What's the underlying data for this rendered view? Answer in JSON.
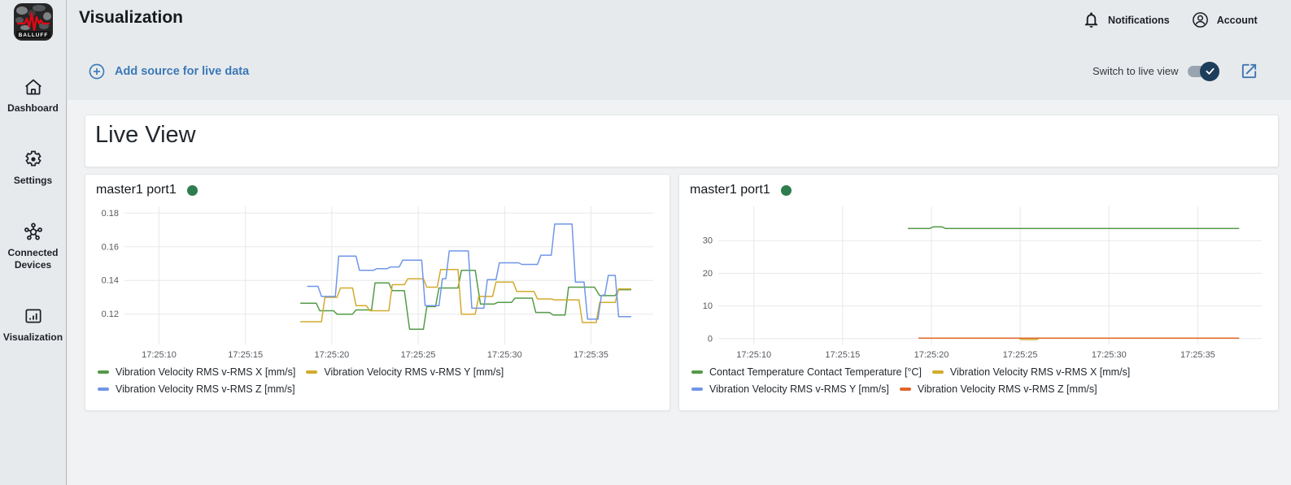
{
  "app": {
    "brand": "BALLUFF",
    "page_title": "Visualization"
  },
  "header": {
    "notifications": "Notifications",
    "account": "Account"
  },
  "toolbar": {
    "add_source": "Add source for live data",
    "switch_live": "Switch to live view",
    "switch_on": true
  },
  "sidebar": {
    "items": [
      {
        "id": "dashboard",
        "label": "Dashboard"
      },
      {
        "id": "settings",
        "label": "Settings"
      },
      {
        "id": "connected-devices",
        "label": "Connected Devices"
      },
      {
        "id": "visualization",
        "label": "Visualization"
      }
    ]
  },
  "content": {
    "view_title": "Live View"
  },
  "colors": {
    "accent_blue": "#3a79b8",
    "toggle_knob_navy": "#1d3e5a",
    "status_green": "#2e7d4e",
    "grid": "#e7e8ea",
    "axis_text": "#56595e"
  },
  "chart_data": [
    {
      "type": "line",
      "title": "master1 port1",
      "status_color": "#2e7d4e",
      "x_unit": "time (hh:mm:ss), values are seconds after 17:25:00",
      "xlim": [
        8.0,
        38.6
      ],
      "x_ticks": [
        {
          "v": 10,
          "label": "17:25:10"
        },
        {
          "v": 15,
          "label": "17:25:15"
        },
        {
          "v": 20,
          "label": "17:25:20"
        },
        {
          "v": 25,
          "label": "17:25:25"
        },
        {
          "v": 30,
          "label": "17:25:30"
        },
        {
          "v": 35,
          "label": "17:25:35"
        }
      ],
      "ylim": [
        0.102,
        0.184
      ],
      "y_ticks": [
        {
          "v": 0.12,
          "label": "0.12"
        },
        {
          "v": 0.14,
          "label": "0.14"
        },
        {
          "v": 0.16,
          "label": "0.16"
        },
        {
          "v": 0.18,
          "label": "0.18"
        }
      ],
      "series": [
        {
          "name": "Vibration Velocity RMS v-RMS X [mm/s]",
          "color": "#539b47",
          "points": [
            [
              18.2,
              0.1265
            ],
            [
              19.1,
              0.1265
            ],
            [
              19.3,
              0.122
            ],
            [
              20.1,
              0.122
            ],
            [
              20.3,
              0.12
            ],
            [
              21.2,
              0.12
            ],
            [
              21.4,
              0.1225
            ],
            [
              22.3,
              0.1225
            ],
            [
              22.5,
              0.1385
            ],
            [
              23.3,
              0.1385
            ],
            [
              23.5,
              0.134
            ],
            [
              24.2,
              0.134
            ],
            [
              24.5,
              0.111
            ],
            [
              25.3,
              0.111
            ],
            [
              25.5,
              0.1245
            ],
            [
              26.0,
              0.1245
            ],
            [
              26.2,
              0.1355
            ],
            [
              27.3,
              0.1355
            ],
            [
              27.5,
              0.146
            ],
            [
              28.3,
              0.146
            ],
            [
              28.6,
              0.126
            ],
            [
              29.4,
              0.126
            ],
            [
              29.6,
              0.127
            ],
            [
              30.4,
              0.127
            ],
            [
              30.6,
              0.1295
            ],
            [
              31.6,
              0.1295
            ],
            [
              31.8,
              0.121
            ],
            [
              32.6,
              0.121
            ],
            [
              32.8,
              0.1195
            ],
            [
              33.5,
              0.1195
            ],
            [
              33.7,
              0.136
            ],
            [
              35.2,
              0.136
            ],
            [
              35.5,
              0.131
            ],
            [
              36.4,
              0.131
            ],
            [
              36.6,
              0.1345
            ],
            [
              37.3,
              0.1345
            ]
          ]
        },
        {
          "name": "Vibration Velocity RMS v-RMS Y [mm/s]",
          "color": "#d2ab2c",
          "points": [
            [
              18.2,
              0.1155
            ],
            [
              19.4,
              0.1155
            ],
            [
              19.6,
              0.13
            ],
            [
              20.3,
              0.13
            ],
            [
              20.5,
              0.1355
            ],
            [
              21.2,
              0.1355
            ],
            [
              21.4,
              0.125
            ],
            [
              22.0,
              0.125
            ],
            [
              22.2,
              0.122
            ],
            [
              23.3,
              0.122
            ],
            [
              23.5,
              0.1375
            ],
            [
              24.2,
              0.1375
            ],
            [
              24.4,
              0.141
            ],
            [
              25.3,
              0.141
            ],
            [
              25.5,
              0.136
            ],
            [
              26.1,
              0.136
            ],
            [
              26.3,
              0.1465
            ],
            [
              27.3,
              0.1465
            ],
            [
              27.5,
              0.12
            ],
            [
              28.3,
              0.12
            ],
            [
              28.5,
              0.1305
            ],
            [
              29.3,
              0.1305
            ],
            [
              29.5,
              0.139
            ],
            [
              30.5,
              0.139
            ],
            [
              30.7,
              0.1335
            ],
            [
              31.7,
              0.1335
            ],
            [
              31.9,
              0.129
            ],
            [
              32.7,
              0.129
            ],
            [
              32.9,
              0.1285
            ],
            [
              34.3,
              0.1285
            ],
            [
              34.5,
              0.115
            ],
            [
              35.3,
              0.115
            ],
            [
              35.5,
              0.127
            ],
            [
              36.4,
              0.127
            ],
            [
              36.6,
              0.135
            ],
            [
              37.3,
              0.135
            ]
          ]
        },
        {
          "name": "Vibration Velocity RMS v-RMS Z [mm/s]",
          "color": "#7096e8",
          "points": [
            [
              18.6,
              0.1365
            ],
            [
              19.2,
              0.1365
            ],
            [
              19.4,
              0.1305
            ],
            [
              20.2,
              0.1305
            ],
            [
              20.4,
              0.1545
            ],
            [
              21.4,
              0.1545
            ],
            [
              21.6,
              0.146
            ],
            [
              22.4,
              0.146
            ],
            [
              22.6,
              0.147
            ],
            [
              23.2,
              0.147
            ],
            [
              23.4,
              0.148
            ],
            [
              23.9,
              0.148
            ],
            [
              24.1,
              0.152
            ],
            [
              25.2,
              0.152
            ],
            [
              25.4,
              0.125
            ],
            [
              26.2,
              0.125
            ],
            [
              26.4,
              0.141
            ],
            [
              26.6,
              0.141
            ],
            [
              26.8,
              0.1575
            ],
            [
              27.9,
              0.1575
            ],
            [
              28.1,
              0.1235
            ],
            [
              28.8,
              0.1235
            ],
            [
              29.0,
              0.1405
            ],
            [
              29.5,
              0.1405
            ],
            [
              29.7,
              0.1505
            ],
            [
              30.8,
              0.1505
            ],
            [
              31.0,
              0.1495
            ],
            [
              31.9,
              0.1495
            ],
            [
              32.1,
              0.155
            ],
            [
              32.7,
              0.155
            ],
            [
              32.9,
              0.1735
            ],
            [
              33.9,
              0.1735
            ],
            [
              34.1,
              0.139
            ],
            [
              34.6,
              0.139
            ],
            [
              34.8,
              0.117
            ],
            [
              35.4,
              0.117
            ],
            [
              35.6,
              0.131
            ],
            [
              35.8,
              0.1315
            ],
            [
              36.0,
              0.143
            ],
            [
              36.4,
              0.143
            ],
            [
              36.6,
              0.1185
            ],
            [
              37.3,
              0.1185
            ]
          ]
        }
      ]
    },
    {
      "type": "line",
      "title": "master1 port1",
      "status_color": "#2e7d4e",
      "x_unit": "time (hh:mm:ss), values are seconds after 17:25:00",
      "xlim": [
        8.0,
        38.6
      ],
      "x_ticks": [
        {
          "v": 10,
          "label": "17:25:10"
        },
        {
          "v": 15,
          "label": "17:25:15"
        },
        {
          "v": 20,
          "label": "17:25:20"
        },
        {
          "v": 25,
          "label": "17:25:25"
        },
        {
          "v": 30,
          "label": "17:25:30"
        },
        {
          "v": 35,
          "label": "17:25:35"
        }
      ],
      "ylim": [
        -1.8,
        40.5
      ],
      "y_ticks": [
        {
          "v": 0,
          "label": "0"
        },
        {
          "v": 10,
          "label": "10"
        },
        {
          "v": 20,
          "label": "20"
        },
        {
          "v": 30,
          "label": "30"
        }
      ],
      "series": [
        {
          "name": "Contact Temperature Contact Temperature [°C]",
          "color": "#539b47",
          "points": [
            [
              18.7,
              33.7
            ],
            [
              19.9,
              33.7
            ],
            [
              20.1,
              34.2
            ],
            [
              20.6,
              34.2
            ],
            [
              20.8,
              33.7
            ],
            [
              37.3,
              33.7
            ]
          ]
        },
        {
          "name": "Vibration Velocity RMS v-RMS X [mm/s]",
          "color": "#d2ab2c",
          "points": [
            [
              19.3,
              0.13
            ],
            [
              24.9,
              0.13
            ],
            [
              25.1,
              -0.3
            ],
            [
              25.9,
              -0.3
            ],
            [
              26.1,
              0.13
            ],
            [
              37.3,
              0.13
            ]
          ]
        },
        {
          "name": "Vibration Velocity RMS v-RMS Y [mm/s]",
          "color": "#7096e8",
          "points": [
            [
              19.3,
              0.12
            ],
            [
              37.3,
              0.12
            ]
          ]
        },
        {
          "name": "Vibration Velocity RMS v-RMS Z [mm/s]",
          "color": "#e0662b",
          "points": [
            [
              19.3,
              0.15
            ],
            [
              37.3,
              0.15
            ]
          ]
        }
      ]
    }
  ]
}
